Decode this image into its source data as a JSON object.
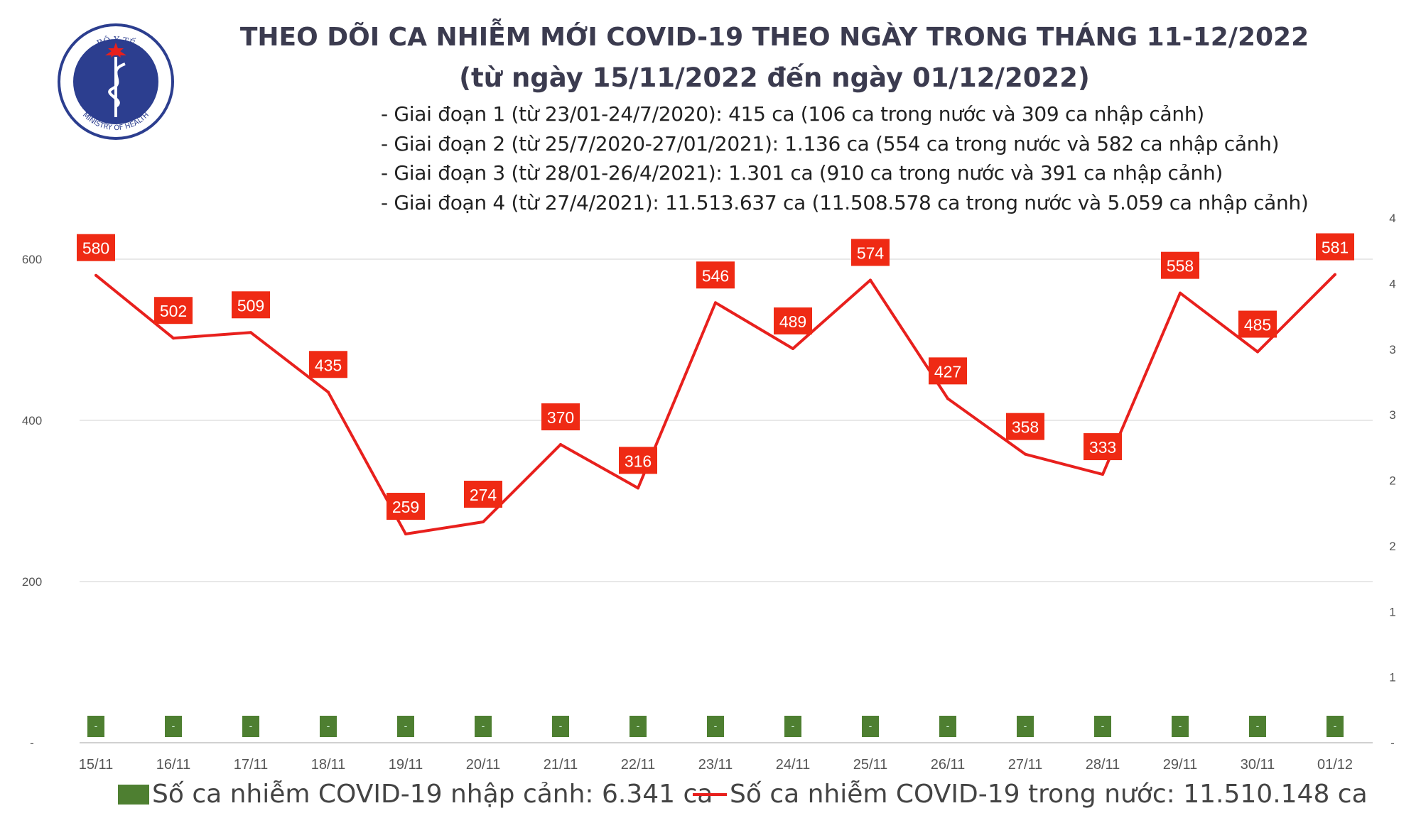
{
  "logo": {
    "top_text": "BỘ Y TẾ",
    "bottom_text": "MINISTRY OF HEALTH"
  },
  "header": {
    "title": "THEO DÕI CA NHIỄM MỚI COVID-19 THEO NGÀY TRONG THÁNG 11-12/2022",
    "subtitle": "(từ ngày 15/11/2022 đến ngày 01/12/2022)",
    "notes": [
      "- Giai đoạn 1 (từ 23/01-24/7/2020): 415 ca (106 ca trong nước và 309 ca nhập cảnh)",
      "- Giai đoạn 2 (từ 25/7/2020-27/01/2021): 1.136 ca (554 ca trong nước và 582 ca nhập cảnh)",
      "- Giai đoạn 3 (từ 28/01-26/4/2021): 1.301 ca (910 ca trong nước và 391 ca nhập cảnh)",
      "- Giai đoạn 4 (từ 27/4/2021): 11.513.637 ca (11.508.578 ca trong nước và 5.059 ca nhập cảnh)"
    ]
  },
  "chart_data": {
    "type": "bar+line",
    "categories": [
      "15/11",
      "16/11",
      "17/11",
      "18/11",
      "19/11",
      "20/11",
      "21/11",
      "22/11",
      "23/11",
      "24/11",
      "25/11",
      "26/11",
      "27/11",
      "28/11",
      "29/11",
      "30/11",
      "01/12"
    ],
    "series": [
      {
        "name": "Số ca nhiễm COVID-19 nhập cảnh: 6.341 ca",
        "type": "bar",
        "axis": "right",
        "color": "#4e7f31",
        "values": [
          0,
          0,
          0,
          0,
          0,
          0,
          0,
          0,
          0,
          0,
          0,
          0,
          0,
          0,
          0,
          0,
          0
        ],
        "data_label": "-"
      },
      {
        "name": "Số ca nhiễm COVID-19 trong nước: 11.510.148 ca",
        "type": "line",
        "axis": "left",
        "color": "#e8201d",
        "values": [
          580,
          502,
          509,
          435,
          259,
          274,
          370,
          316,
          546,
          489,
          574,
          427,
          358,
          333,
          558,
          485,
          581
        ]
      }
    ],
    "left_axis": {
      "ylim": [
        0,
        600
      ],
      "ticks": [
        "-",
        "200",
        "400",
        "600"
      ],
      "tick_values": [
        0,
        200,
        400,
        600
      ]
    },
    "right_axis": {
      "ylim": [
        0,
        4
      ],
      "ticks": [
        "-",
        "1",
        "1",
        "2",
        "2",
        "3",
        "3",
        "4",
        "4"
      ],
      "tick_values": [
        0,
        0.5,
        1,
        1.5,
        2,
        2.5,
        3,
        3.5,
        4
      ]
    },
    "grid": true,
    "legend_position": "bottom"
  }
}
